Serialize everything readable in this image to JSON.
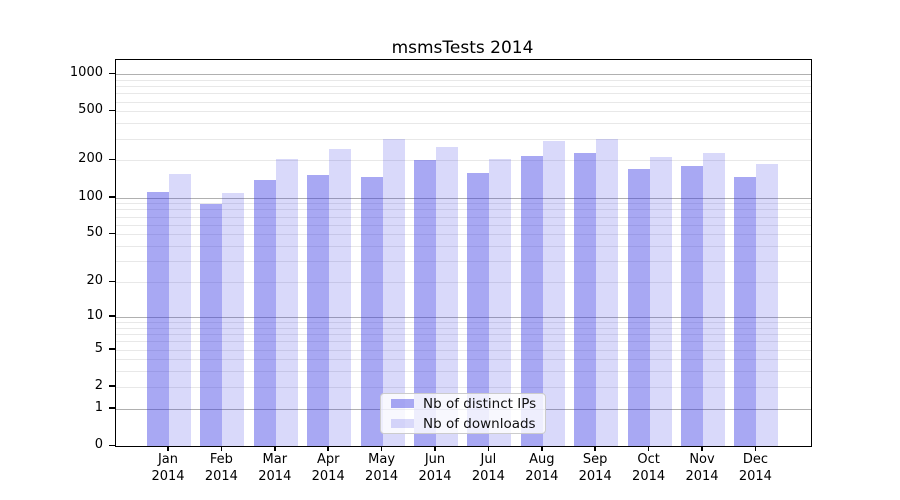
{
  "chart_data": {
    "type": "bar",
    "title": "msmsTests 2014",
    "categories": [
      "Jan",
      "Feb",
      "Mar",
      "Apr",
      "May",
      "Jun",
      "Jul",
      "Aug",
      "Sep",
      "Oct",
      "Nov",
      "Dec"
    ],
    "year_label": "2014",
    "series": [
      {
        "name": "Nb of distinct IPs",
        "color": "rgba(47,47,226,0.42)",
        "values": [
          110,
          88,
          138,
          152,
          146,
          200,
          157,
          216,
          232,
          170,
          180,
          146
        ]
      },
      {
        "name": "Nb of downloads",
        "color": "rgba(47,47,226,0.18)",
        "values": [
          155,
          108,
          206,
          246,
          297,
          255,
          205,
          286,
          297,
          212,
          229,
          186
        ]
      }
    ],
    "y_axis": {
      "scale": "log1p",
      "tick_labels": [
        "1000",
        "500",
        "200",
        "100",
        "50",
        "20",
        "10",
        "5",
        "2",
        "1",
        "0"
      ],
      "tick_values": [
        1000,
        500,
        200,
        100,
        50,
        20,
        10,
        5,
        2,
        1,
        0
      ],
      "major_gridlines": [
        1,
        10,
        100,
        1000
      ],
      "ylim": [
        0,
        1150
      ]
    },
    "legend": {
      "position": "lower-center"
    },
    "colors": {
      "major_grid": "#b0b0b0",
      "minor_grid": "#e8e8e8",
      "axis": "#000000"
    }
  }
}
